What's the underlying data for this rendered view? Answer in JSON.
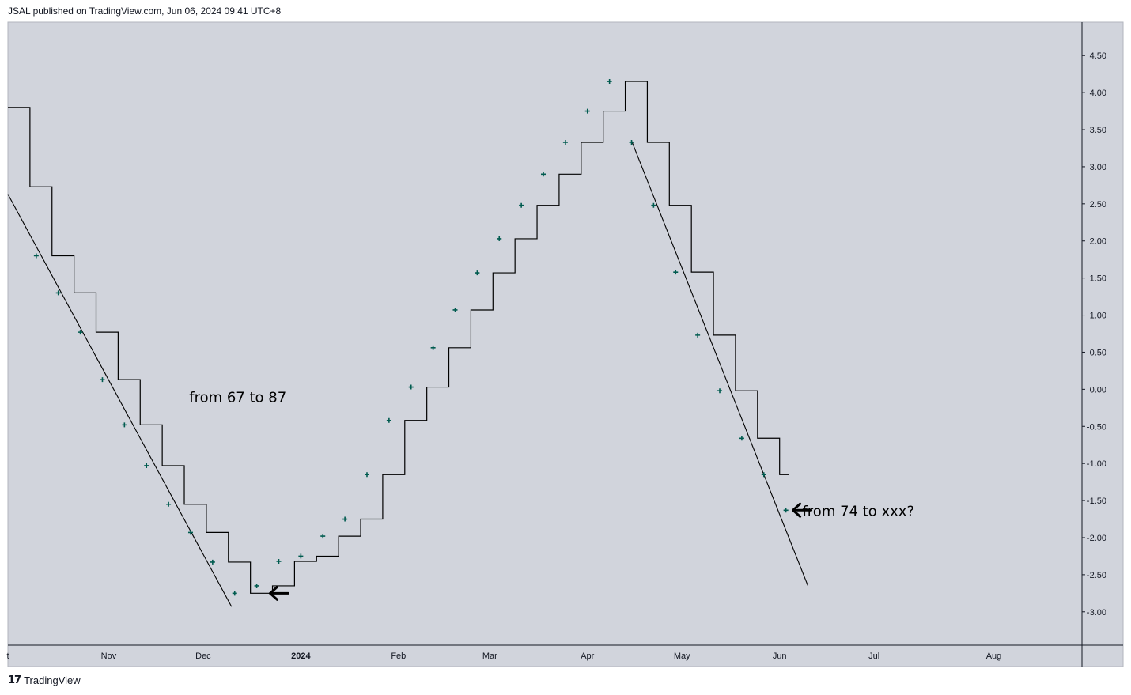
{
  "header": {
    "published": "JSAL published on TradingView.com, Jun 06, 2024 09:41 UTC+8"
  },
  "footer": {
    "logo": "17",
    "brand": "TradingView"
  },
  "chart_data": {
    "type": "line",
    "background": "#d1d4dc",
    "series": [
      {
        "kind": "step",
        "color": "#000000",
        "points": [
          {
            "x": "2023-09-30",
            "y": 3.8
          },
          {
            "x": "2023-10-07",
            "y": 2.73
          },
          {
            "x": "2023-10-14",
            "y": 1.8
          },
          {
            "x": "2023-10-21",
            "y": 1.3
          },
          {
            "x": "2023-10-28",
            "y": 0.77
          },
          {
            "x": "2023-11-04",
            "y": 0.13
          },
          {
            "x": "2023-11-11",
            "y": -0.48
          },
          {
            "x": "2023-11-18",
            "y": -1.03
          },
          {
            "x": "2023-11-25",
            "y": -1.55
          },
          {
            "x": "2023-12-02",
            "y": -1.93
          },
          {
            "x": "2023-12-09",
            "y": -2.33
          },
          {
            "x": "2023-12-16",
            "y": -2.75
          },
          {
            "x": "2023-12-23",
            "y": -2.65
          },
          {
            "x": "2023-12-30",
            "y": -2.32
          },
          {
            "x": "2024-01-06",
            "y": -2.25
          },
          {
            "x": "2024-01-13",
            "y": -1.98
          },
          {
            "x": "2024-01-20",
            "y": -1.75
          },
          {
            "x": "2024-01-27",
            "y": -1.15
          },
          {
            "x": "2024-02-03",
            "y": -0.42
          },
          {
            "x": "2024-02-10",
            "y": 0.03
          },
          {
            "x": "2024-02-17",
            "y": 0.56
          },
          {
            "x": "2024-02-24",
            "y": 1.07
          },
          {
            "x": "2024-03-02",
            "y": 1.57
          },
          {
            "x": "2024-03-09",
            "y": 2.03
          },
          {
            "x": "2024-03-16",
            "y": 2.48
          },
          {
            "x": "2024-03-23",
            "y": 2.9
          },
          {
            "x": "2024-03-30",
            "y": 3.33
          },
          {
            "x": "2024-04-06",
            "y": 3.75
          },
          {
            "x": "2024-04-13",
            "y": 4.15
          },
          {
            "x": "2024-04-20",
            "y": 3.33
          },
          {
            "x": "2024-04-27",
            "y": 2.48
          },
          {
            "x": "2024-05-04",
            "y": 1.58
          },
          {
            "x": "2024-05-11",
            "y": 0.73
          },
          {
            "x": "2024-05-18",
            "y": -0.02
          },
          {
            "x": "2024-05-25",
            "y": -0.66
          },
          {
            "x": "2024-06-01",
            "y": -1.15
          },
          {
            "x": "2024-06-04",
            "y": -1.15
          }
        ]
      },
      {
        "kind": "cross",
        "color": "#005b4f",
        "points": [
          {
            "x": "2023-10-09",
            "y": 1.8
          },
          {
            "x": "2023-10-16",
            "y": 1.3
          },
          {
            "x": "2023-10-23",
            "y": 0.77
          },
          {
            "x": "2023-10-30",
            "y": 0.13
          },
          {
            "x": "2023-11-06",
            "y": -0.48
          },
          {
            "x": "2023-11-13",
            "y": -1.03
          },
          {
            "x": "2023-11-20",
            "y": -1.55
          },
          {
            "x": "2023-11-27",
            "y": -1.93
          },
          {
            "x": "2023-12-04",
            "y": -2.33
          },
          {
            "x": "2023-12-11",
            "y": -2.75
          },
          {
            "x": "2023-12-18",
            "y": -2.65
          },
          {
            "x": "2023-12-25",
            "y": -2.32
          },
          {
            "x": "2024-01-01",
            "y": -2.25
          },
          {
            "x": "2024-01-08",
            "y": -1.98
          },
          {
            "x": "2024-01-15",
            "y": -1.75
          },
          {
            "x": "2024-01-22",
            "y": -1.15
          },
          {
            "x": "2024-01-29",
            "y": -0.42
          },
          {
            "x": "2024-02-05",
            "y": 0.03
          },
          {
            "x": "2024-02-12",
            "y": 0.56
          },
          {
            "x": "2024-02-19",
            "y": 1.07
          },
          {
            "x": "2024-02-26",
            "y": 1.57
          },
          {
            "x": "2024-03-04",
            "y": 2.03
          },
          {
            "x": "2024-03-11",
            "y": 2.48
          },
          {
            "x": "2024-03-18",
            "y": 2.9
          },
          {
            "x": "2024-03-25",
            "y": 3.33
          },
          {
            "x": "2024-04-01",
            "y": 3.75
          },
          {
            "x": "2024-04-08",
            "y": 4.15
          },
          {
            "x": "2024-04-15",
            "y": 3.33
          },
          {
            "x": "2024-04-22",
            "y": 2.48
          },
          {
            "x": "2024-04-29",
            "y": 1.58
          },
          {
            "x": "2024-05-06",
            "y": 0.73
          },
          {
            "x": "2024-05-13",
            "y": -0.02
          },
          {
            "x": "2024-05-20",
            "y": -0.66
          },
          {
            "x": "2024-05-27",
            "y": -1.15
          },
          {
            "x": "2024-06-03",
            "y": -1.63
          }
        ]
      }
    ],
    "trendlines": [
      {
        "from": {
          "x": "2023-09-30",
          "y": 2.63
        },
        "to": {
          "x": "2023-12-10",
          "y": -2.93
        }
      },
      {
        "from": {
          "x": "2024-04-15",
          "y": 3.35
        },
        "to": {
          "x": "2024-06-10",
          "y": -2.65
        }
      }
    ],
    "annotations": [
      {
        "text": "from 67 to 87",
        "x": "2023-12-12",
        "y": -0.1
      },
      {
        "text": "from 74 to xxx?",
        "x": "2024-06-26",
        "y": -1.63
      }
    ],
    "arrows": [
      {
        "direction": "left",
        "x": "2023-12-25",
        "y": -2.75
      },
      {
        "direction": "left",
        "x": "2024-06-08",
        "y": -1.63
      }
    ],
    "ylim": [
      -3.45,
      4.95
    ],
    "yticks": [
      "4.50",
      "4.00",
      "3.50",
      "3.00",
      "2.50",
      "2.00",
      "1.50",
      "1.00",
      "0.50",
      "0.00",
      "-0.50",
      "-1.00",
      "-1.50",
      "-2.00",
      "-2.50",
      "-3.00"
    ],
    "xlim": [
      "2023-09-30",
      "2024-09-05"
    ],
    "xticks": [
      {
        "label": "t",
        "x": "2023-09-30",
        "bold": false
      },
      {
        "label": "Nov",
        "x": "2023-11-01",
        "bold": false
      },
      {
        "label": "Dec",
        "x": "2023-12-01",
        "bold": false
      },
      {
        "label": "2024",
        "x": "2024-01-01",
        "bold": true
      },
      {
        "label": "Feb",
        "x": "2024-02-01",
        "bold": false
      },
      {
        "label": "Mar",
        "x": "2024-03-01",
        "bold": false
      },
      {
        "label": "Apr",
        "x": "2024-04-01",
        "bold": false
      },
      {
        "label": "May",
        "x": "2024-05-01",
        "bold": false
      },
      {
        "label": "Jun",
        "x": "2024-06-01",
        "bold": false
      },
      {
        "label": "Jul",
        "x": "2024-07-01",
        "bold": false
      },
      {
        "label": "Aug",
        "x": "2024-08-08",
        "bold": false
      }
    ],
    "grid": false
  }
}
